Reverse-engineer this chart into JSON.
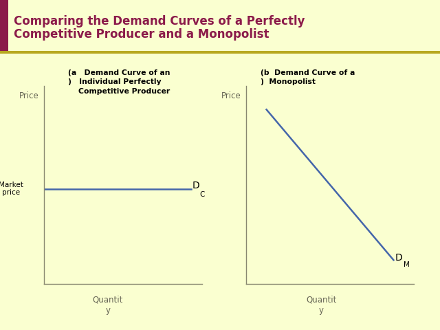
{
  "title_line1": "Comparing the Demand Curves of a Perfectly",
  "title_line2": "Competitive Producer and a Monopolist",
  "title_color": "#8B1A4A",
  "bg_color": "#FAFFD0",
  "border_color": "#8B1A4A",
  "separator_color": "#B8A820",
  "axes_color": "#888870",
  "curve_color": "#4466AA",
  "market_price_box_color": "#C8D4DC",
  "market_price_box_edge": "#A0ACB4",
  "price_label": "Price",
  "quantity_label": "Quantit\ny",
  "market_price_label": "Market\nprice",
  "dc_label": "D",
  "dc_sub": "C",
  "dm_label": "D",
  "dm_sub": "M",
  "panel_a_line1": "(a   Demand Curve of an",
  "panel_a_line2": ")   Individual Perfectly",
  "panel_a_line3": "    Competitive Producer",
  "panel_b_line1": "(b  Demand Curve of a",
  "panel_b_line2": ")  Monopolist"
}
